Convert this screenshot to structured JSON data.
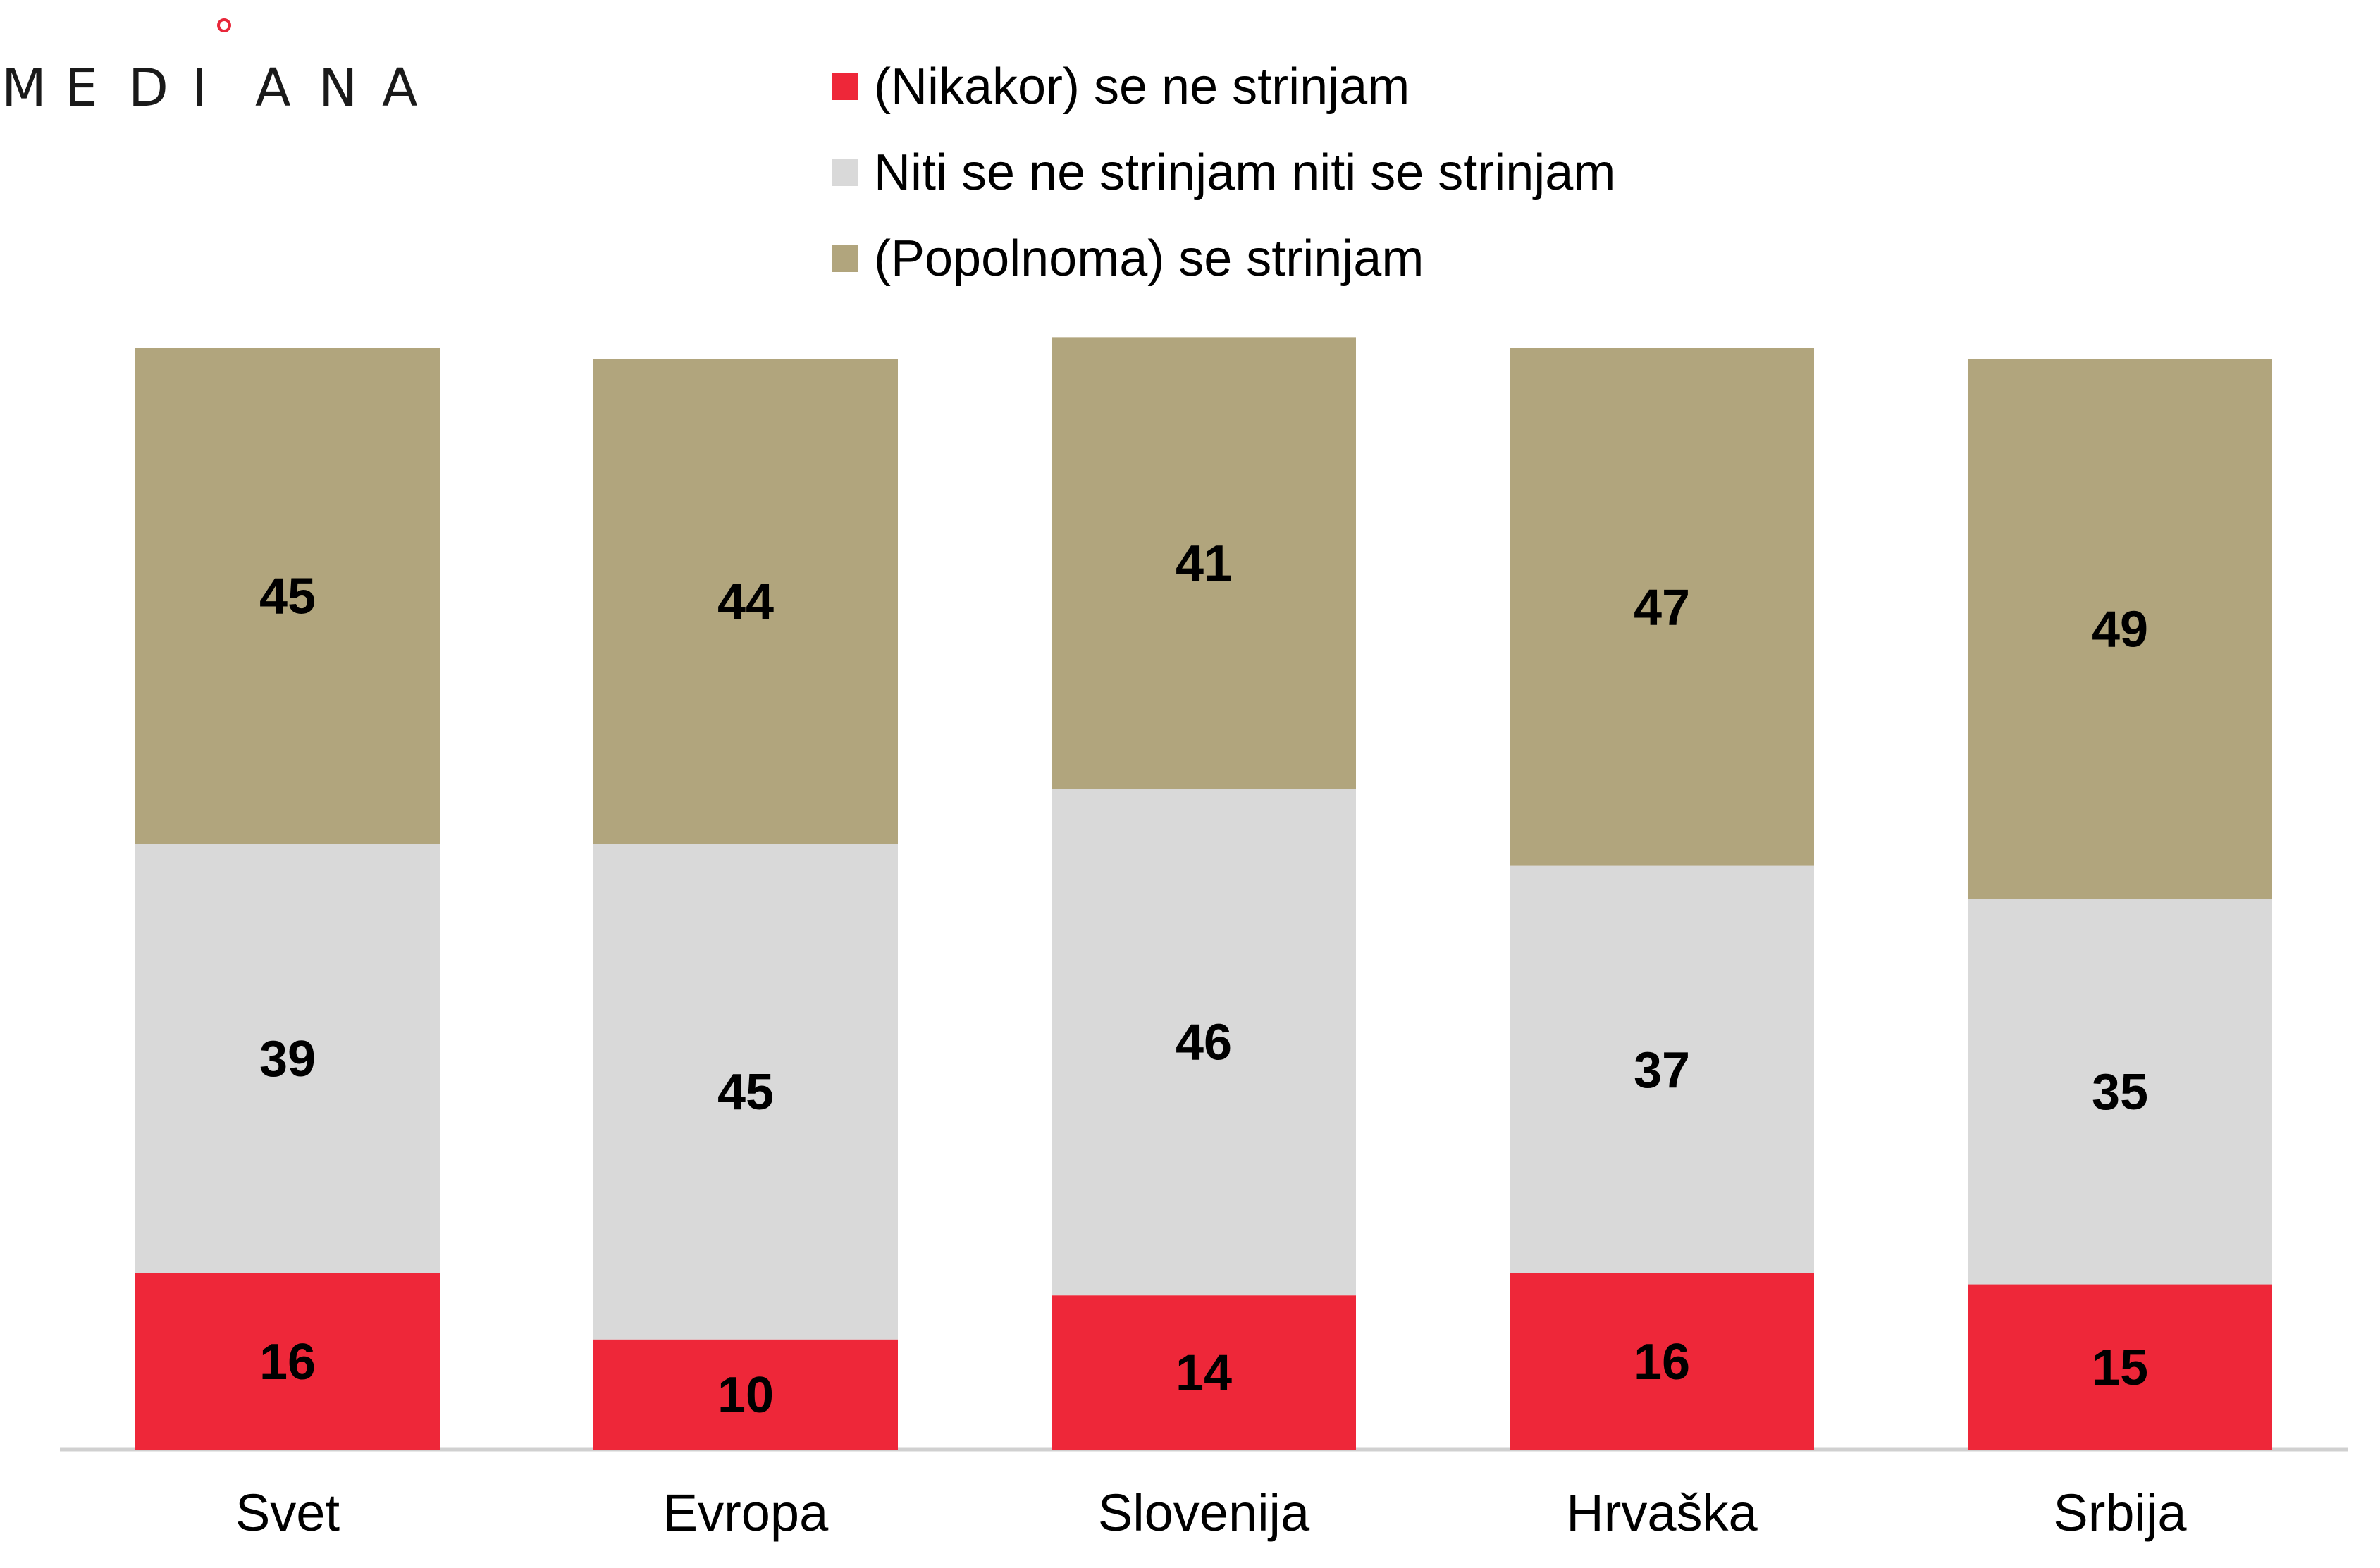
{
  "logo": {
    "text": "MEDIANA",
    "accent_color": "#e8273a"
  },
  "chart_data": {
    "type": "bar",
    "stacked": true,
    "orientation": "vertical",
    "categories": [
      "Svet",
      "Evropa",
      "Slovenija",
      "Hrvaška",
      "Srbija"
    ],
    "series": [
      {
        "name": "(Nikakor) se ne strinjam",
        "color": "#ee2739",
        "values": [
          16,
          10,
          14,
          16,
          15
        ]
      },
      {
        "name": "Niti se ne strinjam niti se strinjam",
        "color": "#d9d9d9",
        "values": [
          39,
          45,
          46,
          37,
          35
        ]
      },
      {
        "name": "(Popolnoma) se strinjam",
        "color": "#b1a57d",
        "values": [
          45,
          44,
          41,
          47,
          49
        ]
      }
    ],
    "ylim": [
      0,
      100
    ],
    "unit": "%",
    "data_labels": true,
    "legend_position": "top",
    "grid": false
  }
}
